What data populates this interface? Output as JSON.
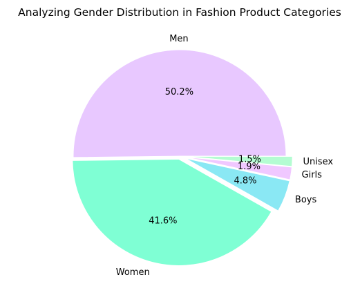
{
  "chart_data": {
    "type": "pie",
    "title": "Analyzing Gender Distribution in Fashion Product Categories",
    "slices": [
      {
        "label": "Men",
        "value": 50.2,
        "pct_label": "50.2%",
        "color": "#e8c8ff",
        "explode": 0.0
      },
      {
        "label": "Women",
        "value": 41.6,
        "pct_label": "41.6%",
        "color": "#7fffd4",
        "explode": 0.03
      },
      {
        "label": "Boys",
        "value": 4.8,
        "pct_label": "4.8%",
        "color": "#8ae8f4",
        "explode": 0.06
      },
      {
        "label": "Girls",
        "value": 1.9,
        "pct_label": "1.9%",
        "color": "#f0c8ff",
        "explode": 0.06
      },
      {
        "label": "Unisex",
        "value": 1.5,
        "pct_label": "1.5%",
        "color": "#b4fcd2",
        "explode": 0.06
      }
    ],
    "start_angle_deg": 0,
    "direction": "counterclockwise",
    "legend": "none"
  }
}
